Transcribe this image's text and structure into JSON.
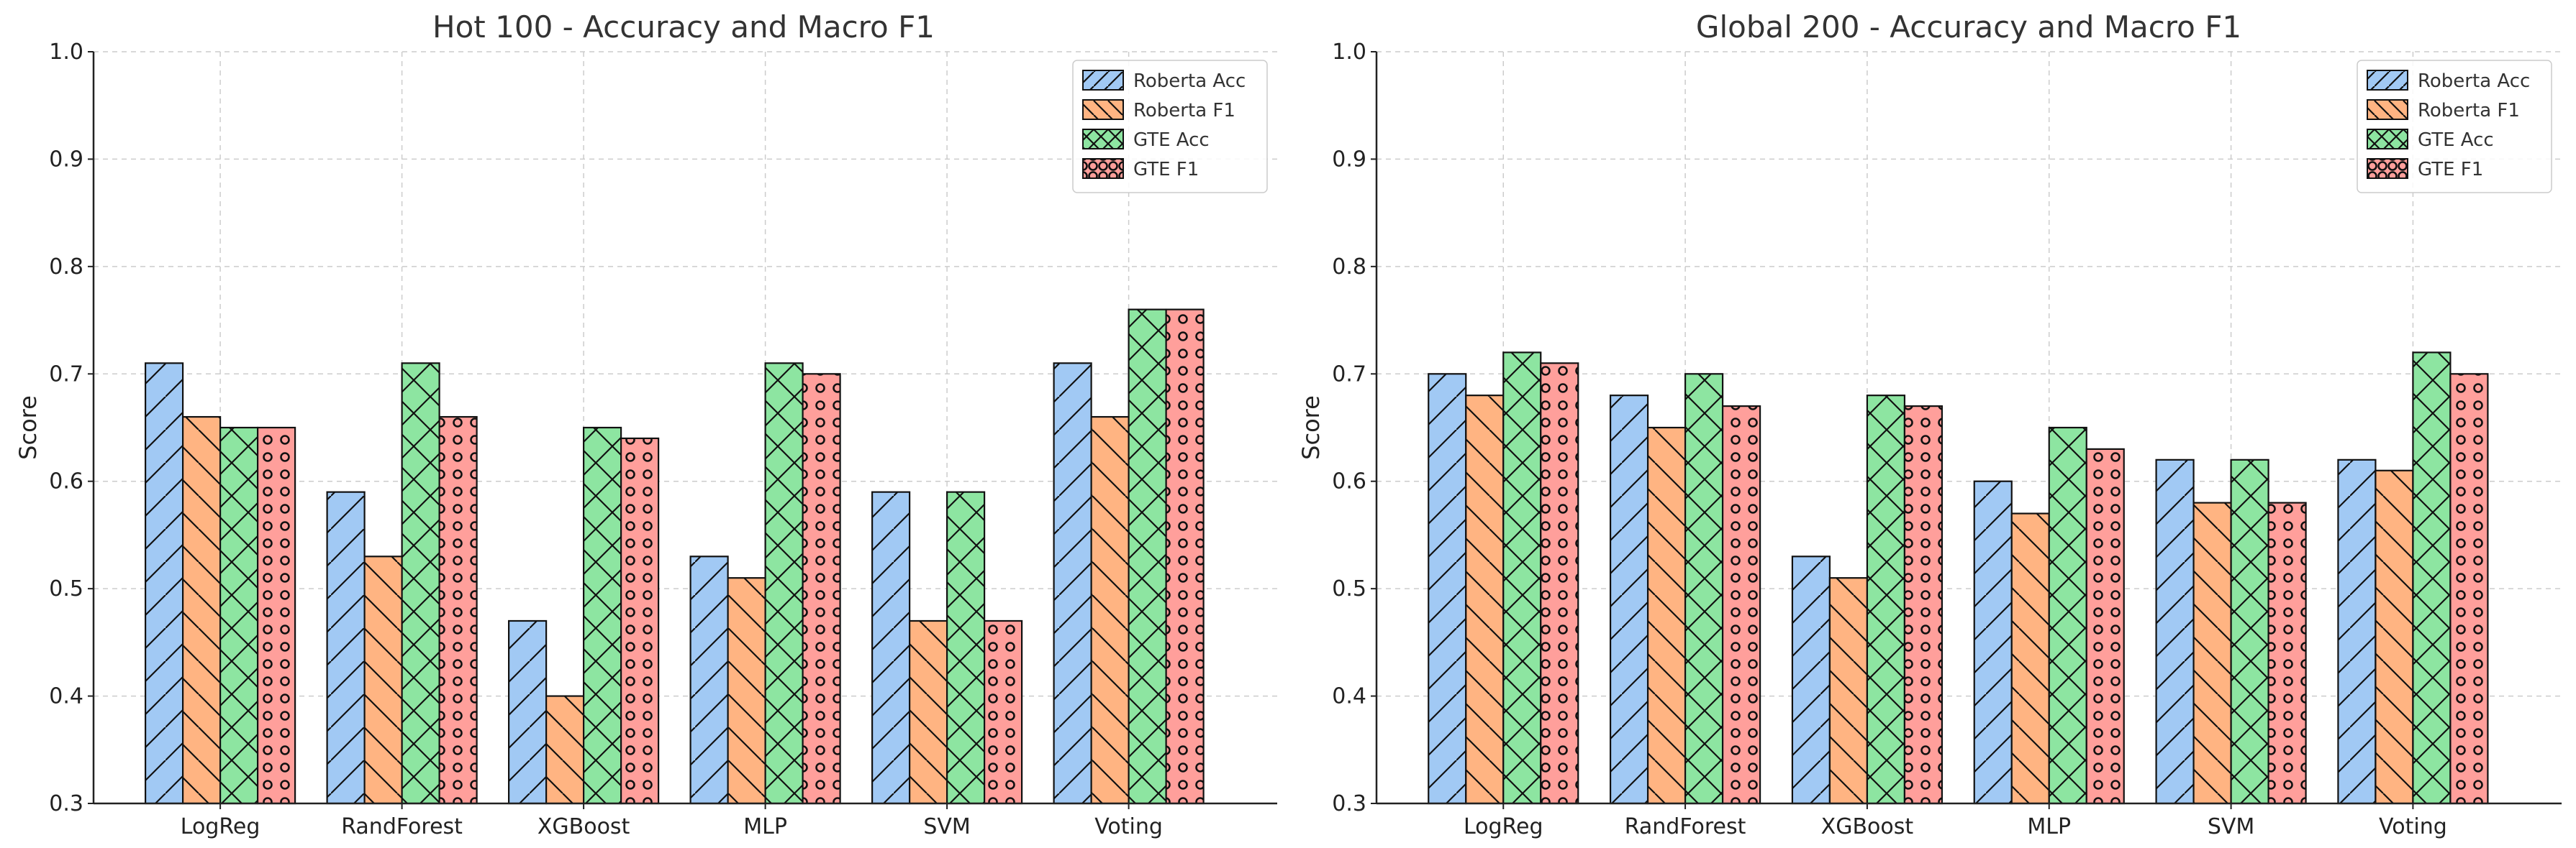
{
  "chart_data": [
    {
      "type": "bar",
      "title": "Hot 100 - Accuracy and Macro F1",
      "xlabel": "",
      "ylabel": "Score",
      "ylim": [
        0.3,
        1.0
      ],
      "yticks": [
        "0.3",
        "0.4",
        "0.5",
        "0.6",
        "0.7",
        "0.8",
        "0.9",
        "1.0"
      ],
      "grid": true,
      "legend_position": "top-right",
      "categories": [
        "LogReg",
        "RandForest",
        "XGBoost",
        "MLP",
        "SVM",
        "Voting"
      ],
      "series": [
        {
          "name": "Roberta Acc",
          "color": "#a1c9f4",
          "hatch": "slash",
          "values": [
            0.71,
            0.59,
            0.47,
            0.53,
            0.59,
            0.71
          ]
        },
        {
          "name": "Roberta F1",
          "color": "#ffb482",
          "hatch": "backslash",
          "values": [
            0.66,
            0.53,
            0.4,
            0.51,
            0.47,
            0.66
          ]
        },
        {
          "name": "GTE Acc",
          "color": "#8de5a1",
          "hatch": "cross",
          "values": [
            0.65,
            0.71,
            0.65,
            0.71,
            0.59,
            0.76
          ]
        },
        {
          "name": "GTE F1",
          "color": "#ff9f9b",
          "hatch": "circle",
          "values": [
            0.65,
            0.66,
            0.64,
            0.7,
            0.47,
            0.76
          ]
        }
      ]
    },
    {
      "type": "bar",
      "title": "Global 200 - Accuracy and Macro F1",
      "xlabel": "",
      "ylabel": "Score",
      "ylim": [
        0.3,
        1.0
      ],
      "yticks": [
        "0.3",
        "0.4",
        "0.5",
        "0.6",
        "0.7",
        "0.8",
        "0.9",
        "1.0"
      ],
      "grid": true,
      "legend_position": "top-right",
      "categories": [
        "LogReg",
        "RandForest",
        "XGBoost",
        "MLP",
        "SVM",
        "Voting"
      ],
      "series": [
        {
          "name": "Roberta Acc",
          "color": "#a1c9f4",
          "hatch": "slash",
          "values": [
            0.7,
            0.68,
            0.53,
            0.6,
            0.62,
            0.62
          ]
        },
        {
          "name": "Roberta F1",
          "color": "#ffb482",
          "hatch": "backslash",
          "values": [
            0.68,
            0.65,
            0.51,
            0.57,
            0.58,
            0.61
          ]
        },
        {
          "name": "GTE Acc",
          "color": "#8de5a1",
          "hatch": "cross",
          "values": [
            0.72,
            0.7,
            0.68,
            0.65,
            0.62,
            0.72
          ]
        },
        {
          "name": "GTE F1",
          "color": "#ff9f9b",
          "hatch": "circle",
          "values": [
            0.71,
            0.67,
            0.67,
            0.63,
            0.58,
            0.7
          ]
        }
      ]
    }
  ]
}
